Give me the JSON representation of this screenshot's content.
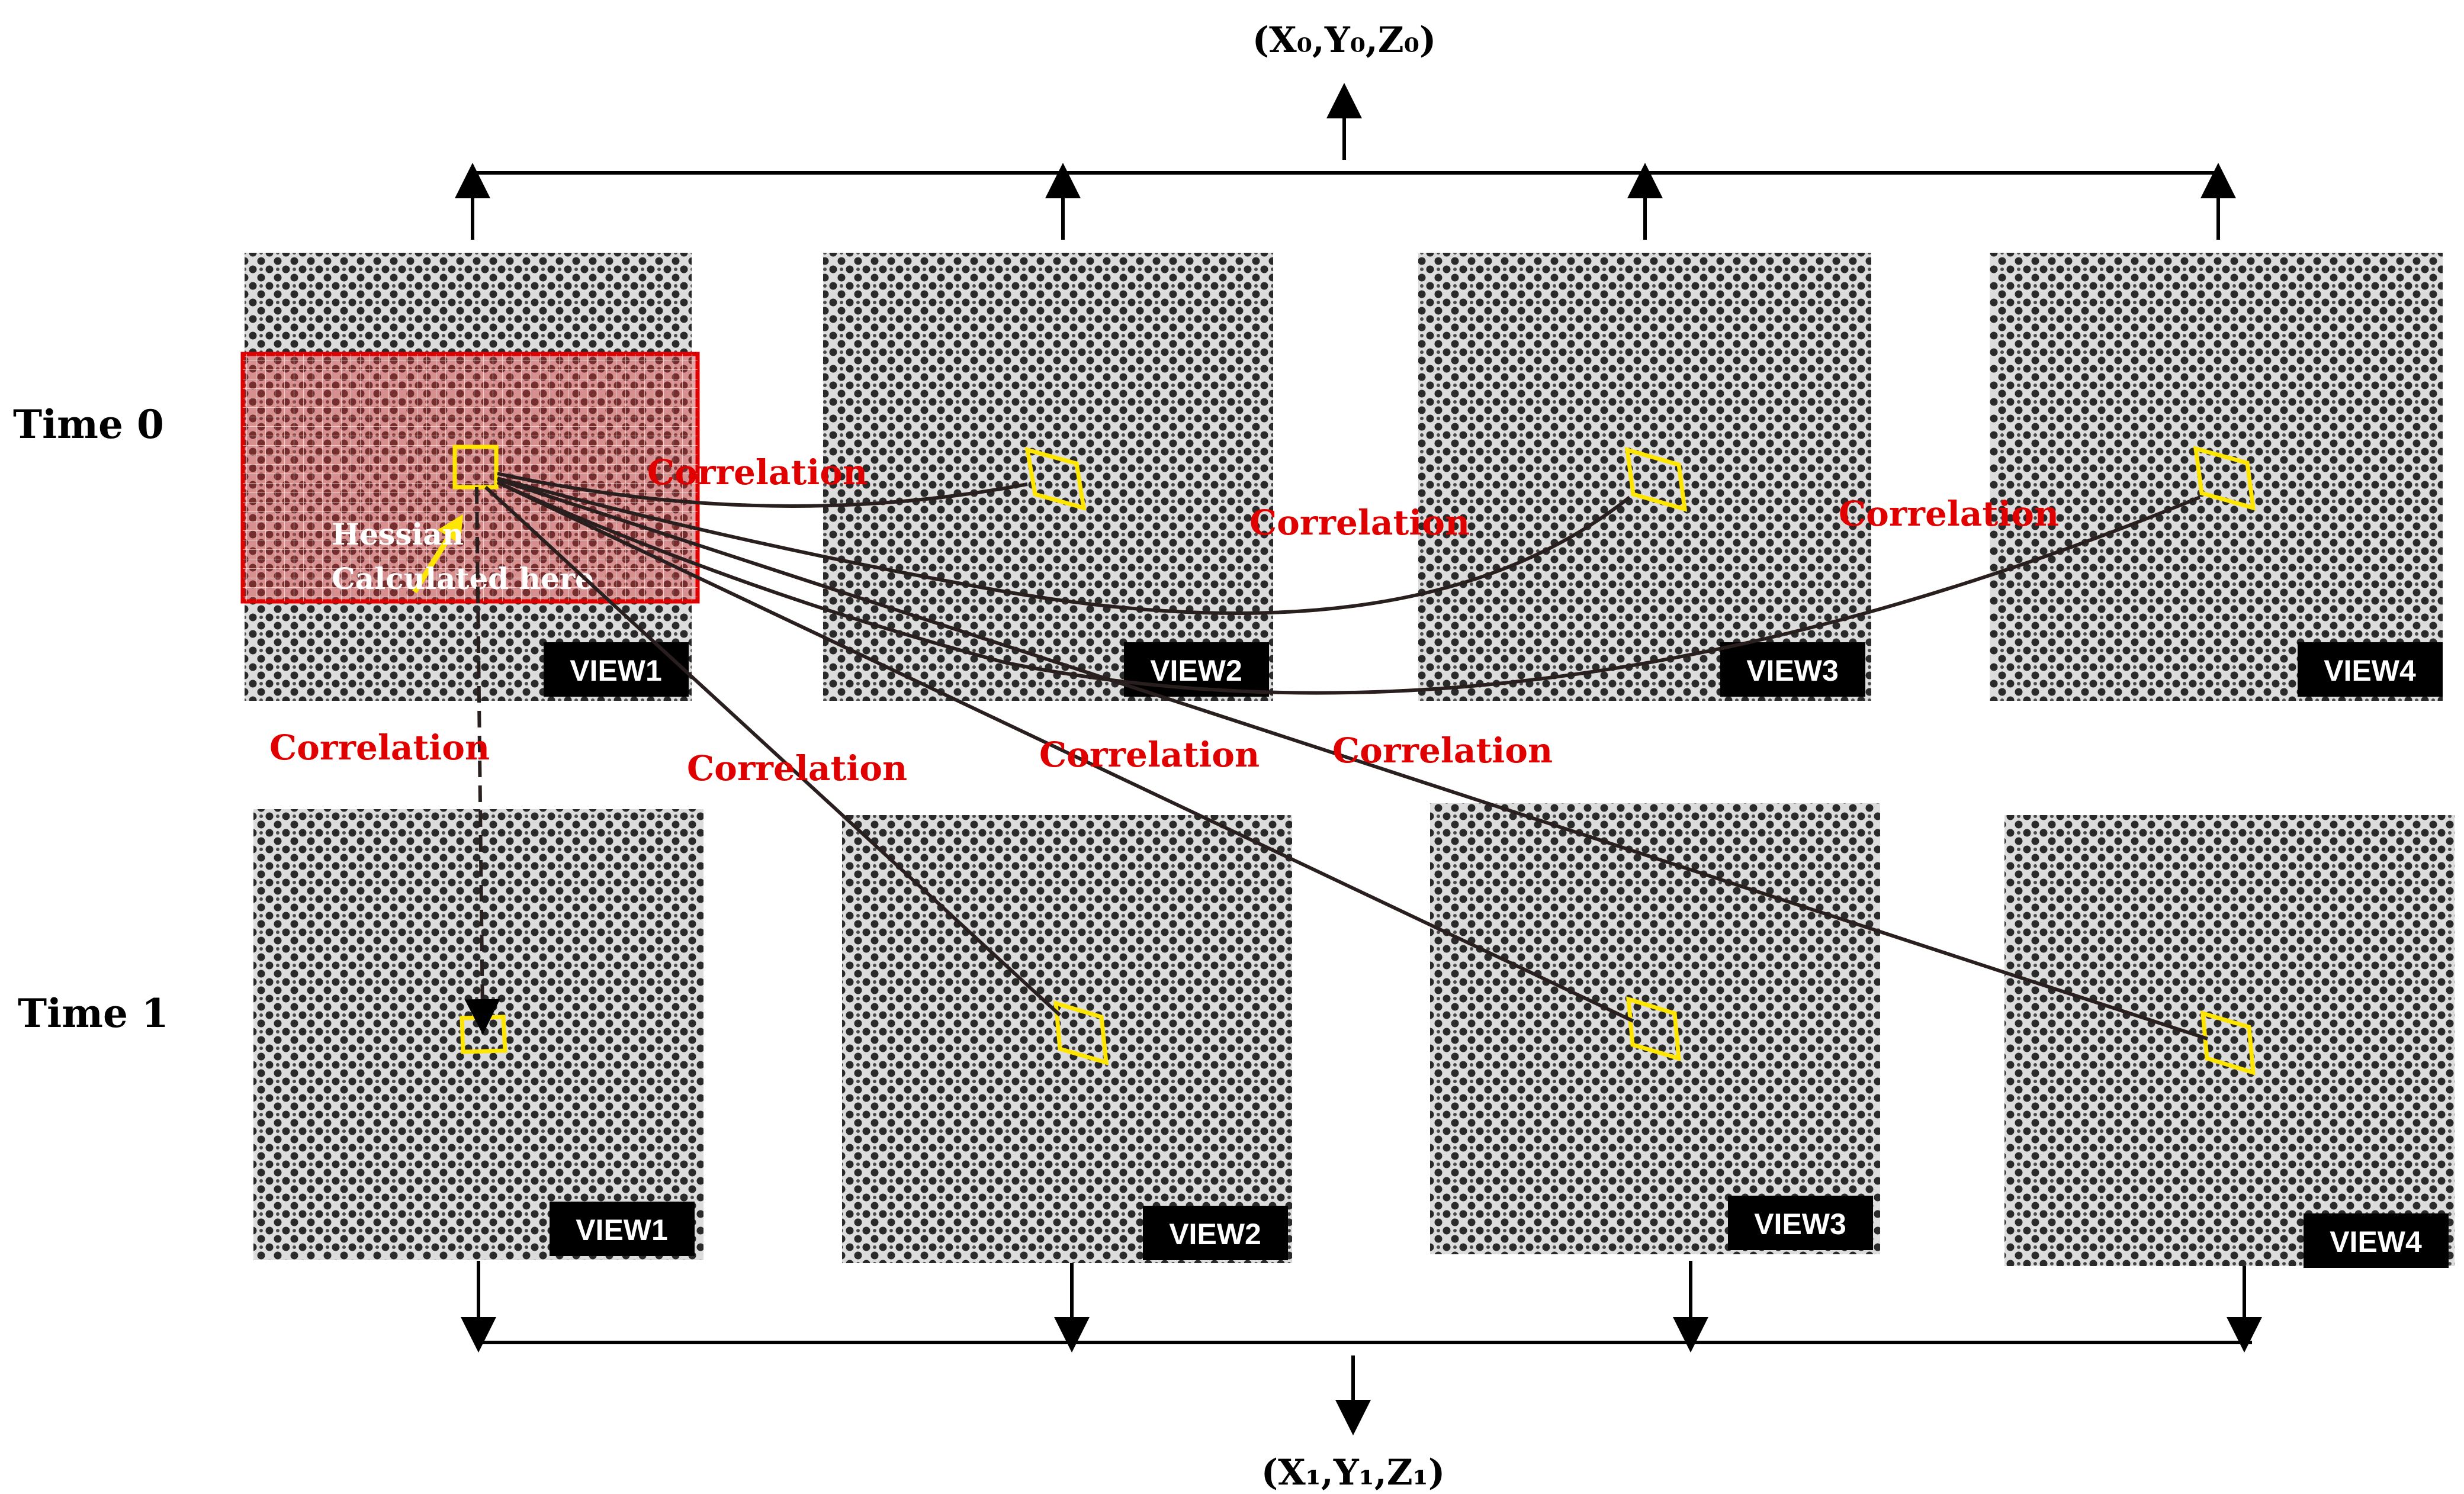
{
  "rows": [
    {
      "label": "Time 0"
    },
    {
      "label": "Time 1"
    }
  ],
  "coords": {
    "top": "(X₀,Y₀,Z₀)",
    "bottom": "(X₁,Y₁,Z₁)"
  },
  "views": {
    "time0": [
      "VIEW1",
      "VIEW2",
      "VIEW3",
      "VIEW4"
    ],
    "time1": [
      "VIEW1",
      "VIEW2",
      "VIEW3",
      "VIEW4"
    ]
  },
  "annotations": {
    "correlation": "Correlation",
    "hessian_line1": "Hessian",
    "hessian_line2": "Calculated here"
  },
  "colors": {
    "accent_red": "#e00000",
    "subset_yellow": "#ffe600",
    "speckle_dark": "#2a2a2a",
    "speckle_light": "#dcdcdc",
    "badge": "#000000"
  }
}
